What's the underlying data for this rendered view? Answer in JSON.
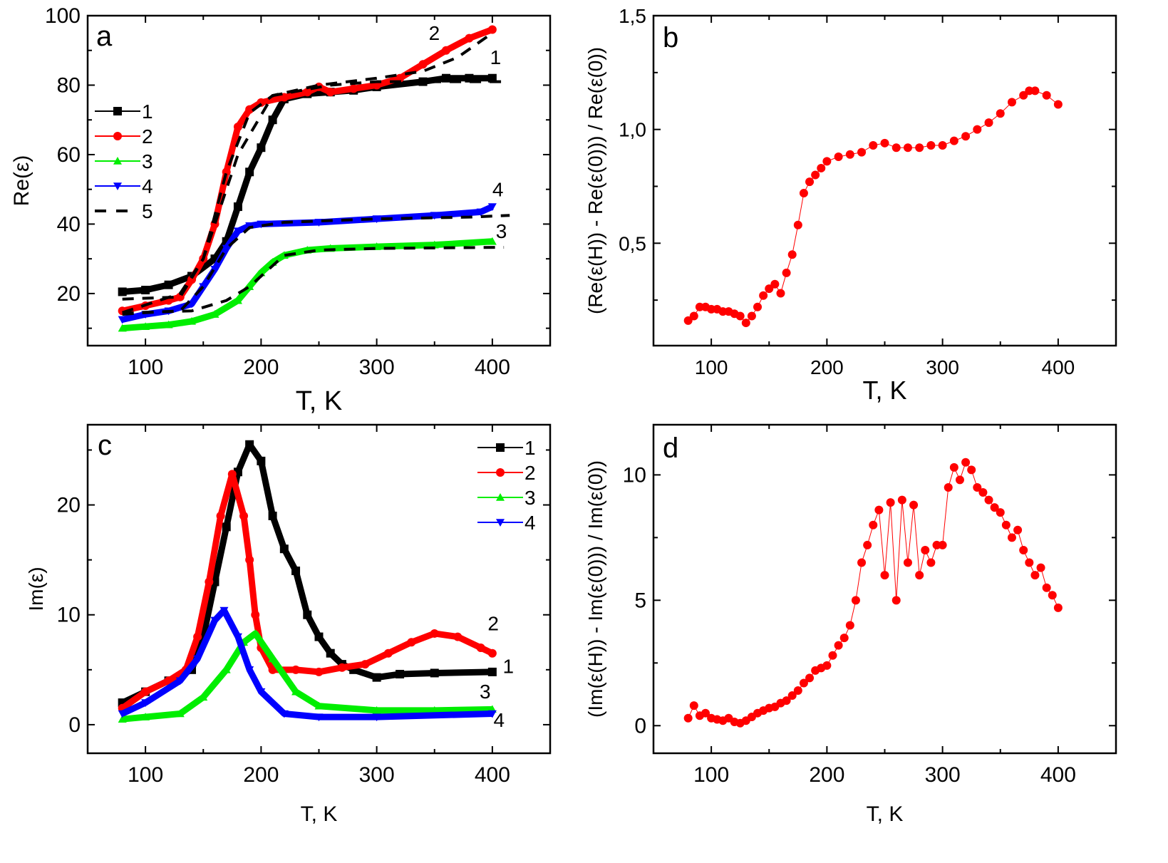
{
  "chart_data": [
    {
      "id": "a",
      "type": "line",
      "panel_label": "a",
      "xlabel": "T, K",
      "ylabel": "Re(ε)",
      "xlim": [
        50,
        450
      ],
      "ylim": [
        5,
        100
      ],
      "xticks": [
        100,
        200,
        300,
        400
      ],
      "xtick_labels": [
        "100",
        "200",
        "300",
        "400"
      ],
      "yticks": [
        20,
        40,
        60,
        80,
        100
      ],
      "ytick_labels": [
        "20",
        "40",
        "60",
        "80",
        "100"
      ],
      "legend_position": "upper-left",
      "legend": [
        "1",
        "2",
        "3",
        "4",
        "5"
      ],
      "series": [
        {
          "name": "1",
          "color": "#000000",
          "marker": "square",
          "x": [
            80,
            100,
            120,
            140,
            160,
            170,
            180,
            190,
            200,
            210,
            220,
            240,
            260,
            280,
            300,
            340,
            360,
            380,
            400
          ],
          "y": [
            20.5,
            21,
            22.5,
            25,
            30,
            35,
            45,
            55,
            62,
            70,
            76,
            77.5,
            78,
            78.5,
            79.5,
            81,
            82,
            82,
            82
          ]
        },
        {
          "name": "2",
          "color": "#ff0000",
          "marker": "circle",
          "x": [
            80,
            100,
            120,
            130,
            140,
            150,
            160,
            170,
            180,
            190,
            200,
            220,
            240,
            250,
            260,
            280,
            300,
            320,
            340,
            360,
            380,
            400
          ],
          "y": [
            15,
            16.5,
            18,
            19,
            24,
            30,
            40,
            55,
            68,
            73,
            75,
            76.5,
            78,
            79.5,
            78,
            79,
            80,
            82,
            86,
            90,
            93.5,
            96
          ]
        },
        {
          "name": "3",
          "color": "#00ee00",
          "marker": "triangle-up",
          "x": [
            80,
            100,
            120,
            140,
            160,
            180,
            190,
            200,
            210,
            220,
            240,
            260,
            300,
            350,
            400
          ],
          "y": [
            10,
            10.5,
            11,
            12,
            14,
            18,
            22,
            26,
            29,
            31,
            32.5,
            33,
            33.5,
            34,
            35
          ]
        },
        {
          "name": "4",
          "color": "#0000ff",
          "marker": "triangle-down",
          "x": [
            80,
            100,
            120,
            140,
            150,
            160,
            170,
            180,
            190,
            200,
            250,
            300,
            350,
            390,
            400
          ],
          "y": [
            12.5,
            14,
            15,
            17,
            22,
            27,
            33,
            38,
            39.5,
            40,
            40.5,
            41.5,
            42.5,
            43.5,
            45
          ]
        },
        {
          "name": "5",
          "color": "#000000",
          "marker": "dash",
          "fit_of": "1",
          "x": [
            80,
            130,
            150,
            180,
            210,
            260,
            300,
            340,
            410
          ],
          "y": [
            18.4,
            19,
            30,
            60,
            77,
            80,
            81,
            81,
            81
          ]
        },
        {
          "name": "5",
          "color": "#000000",
          "marker": "dash",
          "fit_of": "2",
          "x": [
            80,
            130,
            150,
            170,
            190,
            210,
            250,
            300,
            340,
            370,
            400
          ],
          "y": [
            14.5,
            20,
            30,
            55,
            72,
            77,
            80,
            82,
            84,
            88,
            95
          ]
        },
        {
          "name": "5",
          "color": "#000000",
          "marker": "dash",
          "fit_of": "3",
          "x": [
            80,
            140,
            170,
            190,
            220,
            250,
            300,
            410
          ],
          "y": [
            14.4,
            15,
            18,
            22,
            31,
            32.5,
            33,
            33.3
          ]
        },
        {
          "name": "5",
          "color": "#000000",
          "marker": "dash",
          "fit_of": "4",
          "x": [
            80,
            100,
            130,
            150,
            170,
            190,
            220,
            300,
            380,
            415
          ],
          "y": [
            14,
            14.5,
            15,
            22,
            33,
            39,
            40.5,
            41.5,
            42,
            42.5
          ]
        }
      ],
      "annotations": [
        {
          "text": "2",
          "x": 345,
          "y": 93
        },
        {
          "text": "1",
          "x": 398,
          "y": 86
        },
        {
          "text": "4",
          "x": 400,
          "y": 48
        },
        {
          "text": "3",
          "x": 403,
          "y": 36
        }
      ]
    },
    {
      "id": "b",
      "type": "scatter",
      "panel_label": "b",
      "xlabel": "T, K",
      "ylabel": "(Re(ε(H)) - Re(ε(0))) / Re(ε(0))",
      "xlim": [
        50,
        450
      ],
      "ylim": [
        0.05,
        1.5
      ],
      "xticks": [
        100,
        200,
        300,
        400
      ],
      "xtick_labels": [
        "100",
        "200",
        "300",
        "400"
      ],
      "yticks": [
        0.5,
        1.0,
        1.5
      ],
      "ytick_labels": [
        "0,5",
        "1,0",
        "1,5"
      ],
      "series": [
        {
          "name": "b",
          "color": "#ff0000",
          "marker": "circle",
          "x": [
            80,
            85,
            90,
            95,
            100,
            105,
            110,
            115,
            120,
            125,
            130,
            135,
            140,
            145,
            150,
            155,
            160,
            165,
            170,
            175,
            180,
            185,
            190,
            195,
            200,
            210,
            220,
            230,
            240,
            250,
            260,
            270,
            280,
            290,
            300,
            310,
            320,
            330,
            340,
            350,
            360,
            370,
            375,
            380,
            390,
            400
          ],
          "y": [
            0.16,
            0.18,
            0.22,
            0.22,
            0.21,
            0.21,
            0.2,
            0.2,
            0.19,
            0.18,
            0.15,
            0.18,
            0.22,
            0.27,
            0.3,
            0.32,
            0.28,
            0.37,
            0.45,
            0.58,
            0.72,
            0.77,
            0.8,
            0.83,
            0.86,
            0.88,
            0.89,
            0.9,
            0.93,
            0.94,
            0.92,
            0.92,
            0.92,
            0.93,
            0.93,
            0.95,
            0.97,
            1.0,
            1.03,
            1.07,
            1.12,
            1.15,
            1.17,
            1.17,
            1.15,
            1.11
          ]
        }
      ]
    },
    {
      "id": "c",
      "type": "line",
      "panel_label": "c",
      "xlabel": "T, K",
      "ylabel": "Im(ε)",
      "xlim": [
        50,
        450
      ],
      "ylim": [
        -2.6,
        27.3
      ],
      "xticks": [
        100,
        200,
        300,
        400
      ],
      "xtick_labels": [
        "100",
        "200",
        "300",
        "400"
      ],
      "yticks": [
        0,
        10,
        20
      ],
      "ytick_labels": [
        "0",
        "10",
        "20"
      ],
      "legend_position": "upper-right",
      "legend": [
        "1",
        "2",
        "3",
        "4"
      ],
      "series": [
        {
          "name": "1",
          "color": "#000000",
          "marker": "square",
          "x": [
            80,
            100,
            120,
            140,
            150,
            160,
            170,
            180,
            190,
            200,
            210,
            220,
            230,
            240,
            250,
            260,
            270,
            280,
            300,
            320,
            350,
            400
          ],
          "y": [
            2,
            3,
            4,
            5,
            8,
            13,
            18,
            23,
            25.5,
            24,
            19,
            16,
            14,
            10,
            8,
            6.5,
            5.5,
            5,
            4.3,
            4.6,
            4.7,
            4.8
          ]
        },
        {
          "name": "2",
          "color": "#ff0000",
          "marker": "circle",
          "x": [
            80,
            100,
            120,
            135,
            145,
            155,
            165,
            175,
            185,
            190,
            195,
            200,
            210,
            230,
            250,
            270,
            290,
            310,
            330,
            350,
            370,
            390,
            400
          ],
          "y": [
            1.5,
            3,
            4,
            5,
            8,
            13,
            19,
            22.8,
            19,
            15,
            10,
            7,
            5,
            5,
            4.8,
            5.2,
            5.5,
            6.5,
            7.5,
            8.3,
            8,
            7,
            6.5
          ]
        },
        {
          "name": "3",
          "color": "#00ee00",
          "marker": "triangle-up",
          "x": [
            80,
            100,
            130,
            150,
            170,
            185,
            195,
            210,
            230,
            250,
            300,
            350,
            400
          ],
          "y": [
            0.5,
            0.7,
            1,
            2.5,
            5,
            7.5,
            8.3,
            6,
            3,
            1.7,
            1.3,
            1.3,
            1.4
          ]
        },
        {
          "name": "4",
          "color": "#0000ff",
          "marker": "triangle-down",
          "x": [
            80,
            100,
            130,
            145,
            160,
            168,
            180,
            190,
            200,
            220,
            250,
            300,
            400
          ],
          "y": [
            1,
            2,
            4,
            6,
            9.5,
            10.4,
            8,
            5,
            3,
            1,
            0.7,
            0.7,
            1
          ]
        }
      ],
      "annotations": [
        {
          "text": "2",
          "x": 396,
          "y": 8.6
        },
        {
          "text": "1",
          "x": 409,
          "y": 4.7
        },
        {
          "text": "3",
          "x": 389,
          "y": 2.4
        },
        {
          "text": "4",
          "x": 401,
          "y": -0.2
        }
      ]
    },
    {
      "id": "d",
      "type": "scatter",
      "panel_label": "d",
      "xlabel": "T, K",
      "ylabel": "(Im(ε(H)) - Im(ε(0))) / Im(ε(0))",
      "xlim": [
        50,
        450
      ],
      "ylim": [
        -1.1,
        12
      ],
      "xticks": [
        100,
        200,
        300,
        400
      ],
      "xtick_labels": [
        "100",
        "200",
        "300",
        "400"
      ],
      "yticks": [
        0,
        5,
        10
      ],
      "ytick_labels": [
        "0",
        "5",
        "10"
      ],
      "series": [
        {
          "name": "d",
          "color": "#ff0000",
          "marker": "circle",
          "x": [
            80,
            85,
            90,
            95,
            100,
            105,
            110,
            115,
            120,
            125,
            130,
            135,
            140,
            145,
            150,
            155,
            160,
            165,
            170,
            175,
            180,
            185,
            190,
            195,
            200,
            205,
            210,
            215,
            220,
            225,
            230,
            235,
            240,
            245,
            250,
            255,
            260,
            265,
            270,
            275,
            280,
            285,
            290,
            295,
            300,
            305,
            310,
            315,
            320,
            325,
            330,
            335,
            340,
            345,
            350,
            355,
            360,
            365,
            370,
            375,
            380,
            385,
            390,
            395,
            400
          ],
          "y": [
            0.3,
            0.8,
            0.4,
            0.5,
            0.3,
            0.25,
            0.2,
            0.3,
            0.15,
            0.1,
            0.2,
            0.35,
            0.5,
            0.6,
            0.7,
            0.75,
            0.9,
            1.0,
            1.2,
            1.4,
            1.7,
            1.9,
            2.2,
            2.3,
            2.4,
            2.8,
            3.2,
            3.5,
            4.0,
            5.0,
            6.5,
            7.2,
            8.0,
            8.6,
            6.0,
            8.9,
            5.0,
            9.0,
            6.5,
            8.8,
            6.0,
            7.0,
            6.5,
            7.2,
            7.2,
            9.5,
            10.3,
            9.8,
            10.5,
            10.2,
            9.5,
            9.3,
            9.0,
            8.7,
            8.5,
            8.0,
            7.5,
            7.8,
            7.0,
            6.5,
            6.0,
            6.3,
            5.5,
            5.2,
            4.7
          ]
        }
      ]
    }
  ]
}
